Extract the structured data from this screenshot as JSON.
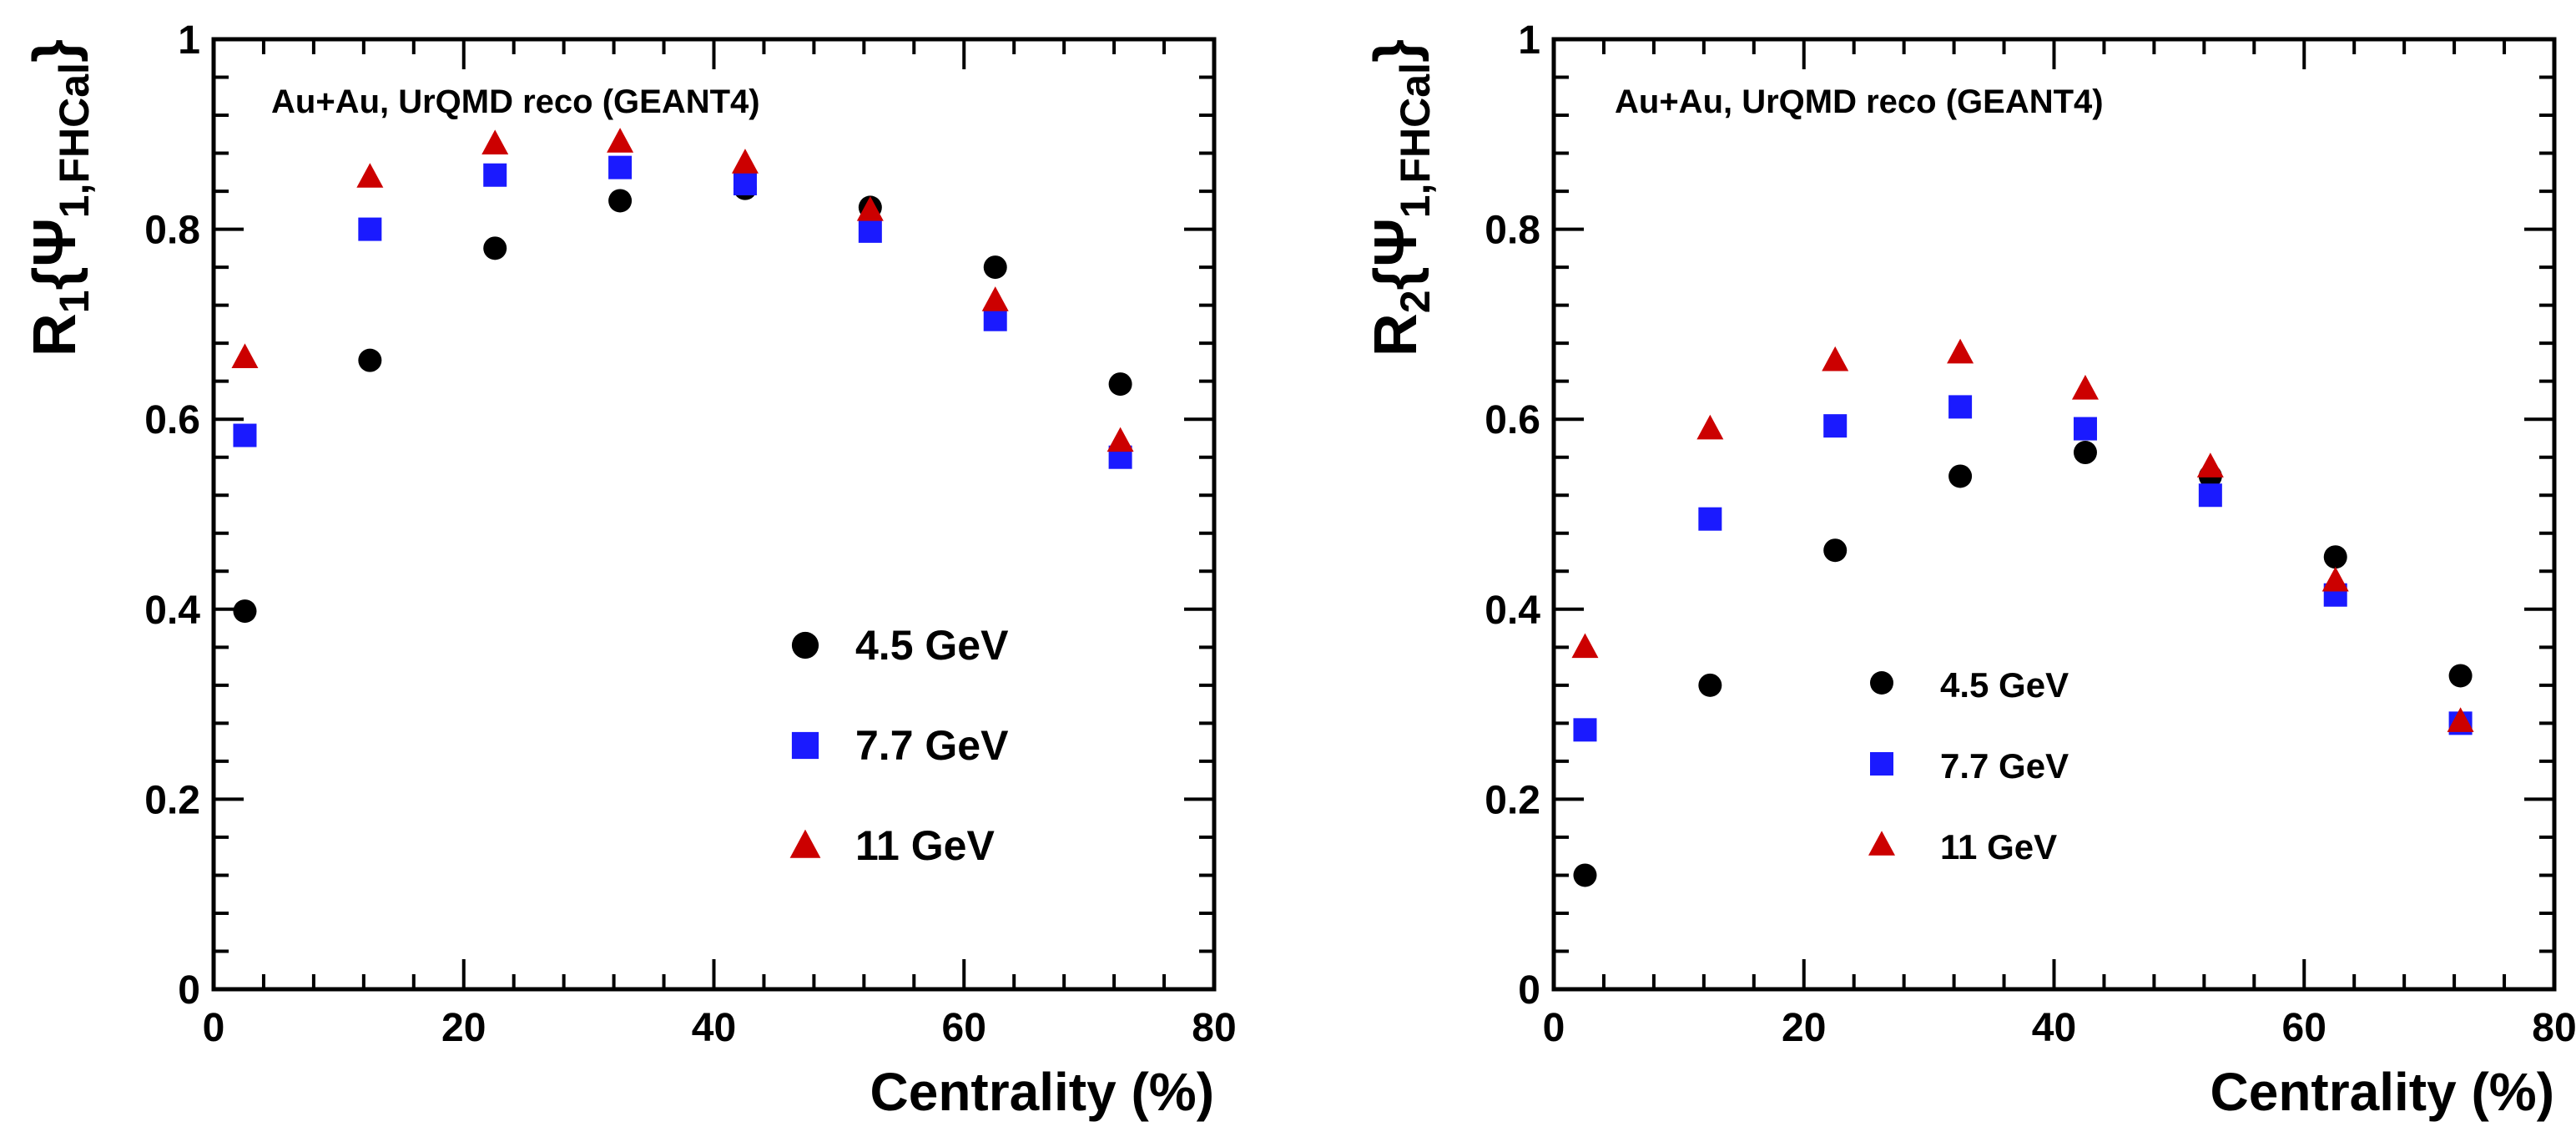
{
  "chart_data": [
    {
      "type": "scatter",
      "panel": "left",
      "title": "",
      "annotation": "Au+Au, UrQMD reco (GEANT4)",
      "xlabel": "Centrality (%)",
      "ylabel": {
        "main": "R",
        "sub1": "1",
        "open": "{Ψ",
        "sub2": "1,FHCal",
        "close": "}"
      },
      "xlim": [
        0,
        80
      ],
      "ylim": [
        0,
        1
      ],
      "x_ticks": [
        "0",
        "20",
        "40",
        "60",
        "80"
      ],
      "y_ticks": [
        "0",
        "0.2",
        "0.4",
        "0.6",
        "0.8",
        "1"
      ],
      "legend_position": "bottom-right",
      "x": [
        2.5,
        12.5,
        22.5,
        32.5,
        42.5,
        52.5,
        62.5,
        72.5
      ],
      "series": [
        {
          "name": "4.5 GeV",
          "marker": "circle",
          "color": "#000000",
          "values": [
            0.398,
            0.662,
            0.78,
            0.83,
            0.843,
            0.823,
            0.76,
            0.637
          ]
        },
        {
          "name": "7.7 GeV",
          "marker": "square",
          "color": "#1a1aff",
          "values": [
            0.583,
            0.8,
            0.857,
            0.865,
            0.848,
            0.798,
            0.705,
            0.56
          ]
        },
        {
          "name": "11 GeV",
          "marker": "triangle",
          "color": "#cc0000",
          "values": [
            0.665,
            0.855,
            0.89,
            0.892,
            0.87,
            0.82,
            0.725,
            0.577
          ]
        }
      ]
    },
    {
      "type": "scatter",
      "panel": "right",
      "title": "",
      "annotation": "Au+Au, UrQMD reco (GEANT4)",
      "xlabel": "Centrality (%)",
      "ylabel": {
        "main": "R",
        "sub1": "2",
        "open": "{Ψ",
        "sub2": "1,FHCal",
        "close": "}"
      },
      "xlim": [
        0,
        80
      ],
      "ylim": [
        0,
        1
      ],
      "x_ticks": [
        "0",
        "20",
        "40",
        "60",
        "80"
      ],
      "y_ticks": [
        "0",
        "0.2",
        "0.4",
        "0.6",
        "0.8",
        "1"
      ],
      "legend_position": "bottom-center",
      "x": [
        2.5,
        12.5,
        22.5,
        32.5,
        42.5,
        52.5,
        62.5,
        72.5
      ],
      "series": [
        {
          "name": "4.5 GeV",
          "marker": "circle",
          "color": "#000000",
          "values": [
            0.12,
            0.32,
            0.462,
            0.54,
            0.565,
            0.54,
            0.455,
            0.33
          ]
        },
        {
          "name": "7.7 GeV",
          "marker": "square",
          "color": "#1a1aff",
          "values": [
            0.273,
            0.495,
            0.593,
            0.613,
            0.59,
            0.52,
            0.415,
            0.28
          ]
        },
        {
          "name": "11 GeV",
          "marker": "triangle",
          "color": "#cc0000",
          "values": [
            0.36,
            0.59,
            0.662,
            0.67,
            0.632,
            0.55,
            0.43,
            0.282
          ]
        }
      ]
    }
  ]
}
